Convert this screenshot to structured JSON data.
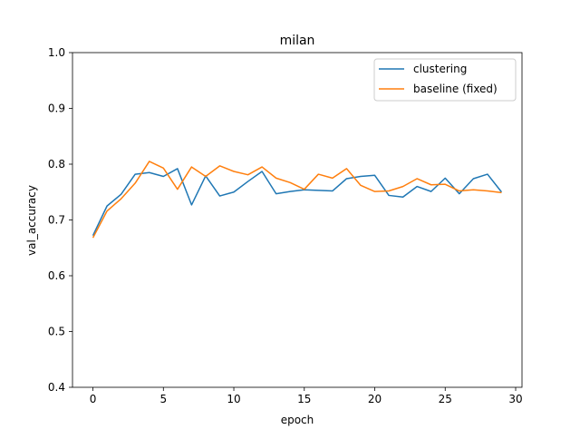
{
  "chart_data": {
    "type": "line",
    "title": "milan",
    "xlabel": "epoch",
    "ylabel": "val_accuracy",
    "xlim": [
      -1.45,
      30.45
    ],
    "ylim": [
      0.4,
      1.0
    ],
    "xticks": [
      0,
      5,
      10,
      15,
      20,
      25,
      30
    ],
    "xtick_labels": [
      "0",
      "5",
      "10",
      "15",
      "20",
      "25",
      "30"
    ],
    "yticks": [
      0.4,
      0.5,
      0.6,
      0.7,
      0.8,
      0.9,
      1.0
    ],
    "ytick_labels": [
      "0.4",
      "0.5",
      "0.6",
      "0.7",
      "0.8",
      "0.9",
      "1.0"
    ],
    "grid": false,
    "legend_position": "upper right",
    "x": [
      0,
      1,
      2,
      3,
      4,
      5,
      6,
      7,
      8,
      9,
      10,
      11,
      12,
      13,
      14,
      15,
      16,
      17,
      18,
      19,
      20,
      21,
      22,
      23,
      24,
      25,
      26,
      27,
      28,
      29
    ],
    "series": [
      {
        "name": "clustering",
        "color": "#1f77b4",
        "values": [
          0.672,
          0.725,
          0.746,
          0.782,
          0.785,
          0.778,
          0.792,
          0.727,
          0.779,
          0.743,
          0.75,
          0.769,
          0.787,
          0.747,
          0.751,
          0.754,
          0.753,
          0.752,
          0.774,
          0.778,
          0.78,
          0.744,
          0.741,
          0.76,
          0.751,
          0.775,
          0.747,
          0.774,
          0.782,
          0.75
        ]
      },
      {
        "name": "baseline (fixed)",
        "color": "#ff7f0e",
        "values": [
          0.668,
          0.716,
          0.738,
          0.766,
          0.805,
          0.793,
          0.755,
          0.795,
          0.778,
          0.797,
          0.787,
          0.781,
          0.795,
          0.775,
          0.767,
          0.755,
          0.782,
          0.775,
          0.792,
          0.762,
          0.751,
          0.752,
          0.76,
          0.774,
          0.763,
          0.764,
          0.752,
          0.754,
          0.752,
          0.749
        ]
      }
    ]
  }
}
